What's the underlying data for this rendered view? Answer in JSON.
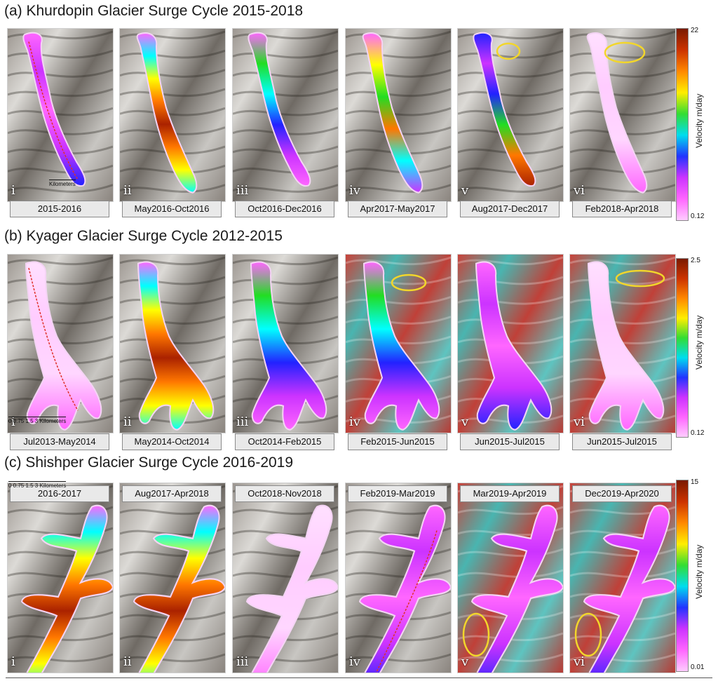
{
  "panels": [
    {
      "title": "(a) Khurdopin Glacier Surge Cycle 2015-2018",
      "colorbar": {
        "max": "22",
        "min": "0.12",
        "title": "Velocity m/day"
      },
      "scalebar": "Kilometers",
      "tiles": [
        {
          "numeral": "i",
          "label": "2015-2016",
          "base": "gray",
          "glacier": "pink"
        },
        {
          "numeral": "ii",
          "label": "May2016-Oct2016",
          "base": "gray",
          "glacier": "hot"
        },
        {
          "numeral": "iii",
          "label": "Oct2016-Dec2016",
          "base": "gray",
          "glacier": "mid"
        },
        {
          "numeral": "iv",
          "label": "Apr2017-May2017",
          "base": "gray",
          "glacier": "speckle"
        },
        {
          "numeral": "v",
          "label": "Aug2017-Dec2017",
          "base": "gray",
          "glacier": "blue-hot"
        },
        {
          "numeral": "vi",
          "label": "Feb2018-Apr2018",
          "base": "gray",
          "glacier": "pale"
        }
      ]
    },
    {
      "title": "(b) Kyager Glacier Surge Cycle 2012-2015",
      "colorbar": {
        "max": "2.5",
        "min": "0.12",
        "title": "Velocity m/day"
      },
      "scalebar": "0   0.75   1.5        3 Kilometers",
      "tiles": [
        {
          "numeral": "i",
          "label": "Jul2013-May2014",
          "base": "gray",
          "glacier": "pale"
        },
        {
          "numeral": "ii",
          "label": "May2014-Oct2014",
          "base": "gray",
          "glacier": "hot"
        },
        {
          "numeral": "iii",
          "label": "Oct2014-Feb2015",
          "base": "gray",
          "glacier": "mid"
        },
        {
          "numeral": "iv",
          "label": "Feb2015-Jun2015",
          "base": "false",
          "glacier": "mid"
        },
        {
          "numeral": "v",
          "label": "Jun2015-Jul2015",
          "base": "false",
          "glacier": "pink"
        },
        {
          "numeral": "vi",
          "label": "Jun2015-Jul2015",
          "base": "false",
          "glacier": "pale"
        }
      ]
    },
    {
      "title": "(c) Shishper Glacier Surge Cycle 2016-2019",
      "colorbar": {
        "max": "15",
        "min": "0.01",
        "title": "Velocity m/day"
      },
      "scalebar": "0   0.75   1.5        3 Kilometers",
      "tiles": [
        {
          "numeral": "i",
          "label": "2016-2017",
          "base": "gray",
          "glacier": "hot"
        },
        {
          "numeral": "ii",
          "label": "Aug2017-Apr2018",
          "base": "gray",
          "glacier": "hot"
        },
        {
          "numeral": "iii",
          "label": "Oct2018-Nov2018",
          "base": "gray",
          "glacier": "pale"
        },
        {
          "numeral": "iv",
          "label": "Feb2019-Mar2019",
          "base": "gray",
          "glacier": "pink"
        },
        {
          "numeral": "v",
          "label": "Mar2019-Apr2019",
          "base": "false",
          "glacier": "pink"
        },
        {
          "numeral": "vi",
          "label": "Dec2019-Apr2020",
          "base": "false",
          "glacier": "pink"
        }
      ]
    }
  ],
  "colors": {
    "highlight_ellipse": "#f2d62b",
    "profile_line": "#e0302a",
    "velocity_scale": [
      "#ff66ff",
      "#cc33ff",
      "#2222ff",
      "#00ffff",
      "#22dd22",
      "#ffff00",
      "#ff7700",
      "#aa2200"
    ]
  }
}
